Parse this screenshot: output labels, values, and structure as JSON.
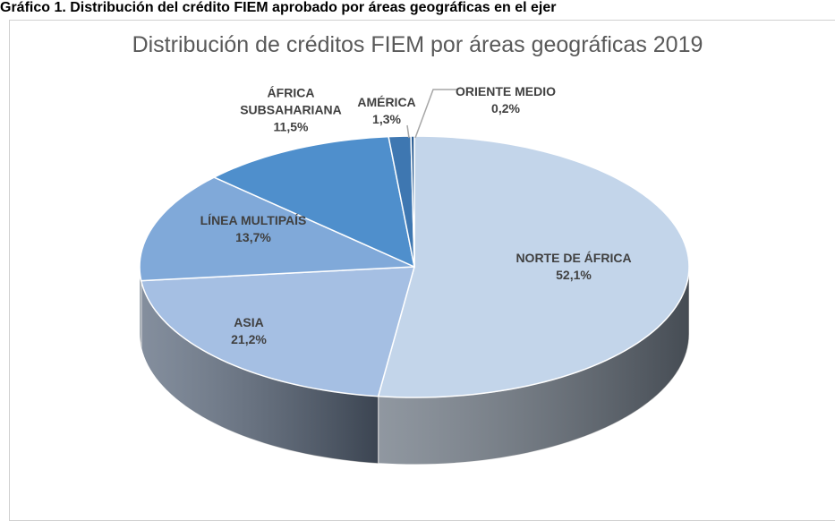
{
  "caption": "Gráfico 1. Distribución del crédito FIEM aprobado por áreas geográficas en el ejer",
  "chart_data": {
    "type": "pie3d",
    "title": "Distribución de créditos FIEM por áreas geográficas 2019",
    "categories": [
      "NORTE DE ÁFRICA",
      "ASIA",
      "LÍNEA MULTIPAÍS",
      "ÁFRICA SUBSAHARIANA",
      "AMÉRICA",
      "ORIENTE MEDIO"
    ],
    "values": [
      52.1,
      21.2,
      13.7,
      11.5,
      1.3,
      0.2
    ],
    "value_labels": [
      "52,1%",
      "21,2%",
      "13,7%",
      "11,5%",
      "1,3%",
      "0,2%"
    ],
    "colors": [
      "#c3d5ea",
      "#a5bfe3",
      "#80a9d9",
      "#4f8fcc",
      "#3e77b1",
      "#2c5e94"
    ]
  }
}
